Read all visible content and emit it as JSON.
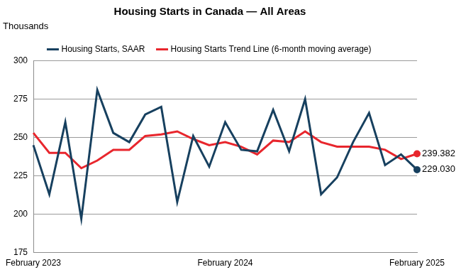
{
  "chart_data": {
    "type": "line",
    "title": "Housing Starts in Canada — All Areas",
    "y_label": "Thousands",
    "categories": [
      "February 2023",
      null,
      null,
      null,
      null,
      null,
      null,
      null,
      null,
      null,
      null,
      null,
      "February 2024",
      null,
      null,
      null,
      null,
      null,
      null,
      null,
      null,
      null,
      null,
      null,
      "February 2025"
    ],
    "series": [
      {
        "name": "Housing Starts, SAAR",
        "color": "#17405f",
        "values": [
          245,
          213,
          260,
          197,
          281,
          253,
          247,
          265,
          270,
          208,
          251,
          231,
          260,
          242,
          241,
          268,
          241,
          275,
          213,
          224,
          247,
          266,
          232,
          239,
          229.03
        ],
        "value_labels": [
          null,
          null,
          null,
          null,
          null,
          null,
          null,
          null,
          null,
          null,
          null,
          null,
          null,
          null,
          null,
          null,
          null,
          null,
          null,
          null,
          null,
          null,
          null,
          null,
          "229.030"
        ]
      },
      {
        "name": "Housing Starts Trend Line (6-month moving average)",
        "color": "#e8262d",
        "values": [
          253,
          240,
          240,
          230,
          235,
          242,
          242,
          251,
          252,
          254,
          249,
          245,
          247,
          244,
          239,
          248,
          247,
          254,
          247,
          244,
          244,
          244,
          242,
          236,
          239.382
        ],
        "value_labels": [
          null,
          null,
          null,
          null,
          null,
          null,
          null,
          null,
          null,
          null,
          null,
          null,
          null,
          null,
          null,
          null,
          null,
          null,
          null,
          null,
          null,
          null,
          null,
          null,
          "239.382"
        ]
      }
    ],
    "ylim": [
      175,
      300
    ],
    "yticks": [
      175,
      200,
      225,
      250,
      275,
      300
    ],
    "grid": true,
    "legend": "top"
  }
}
